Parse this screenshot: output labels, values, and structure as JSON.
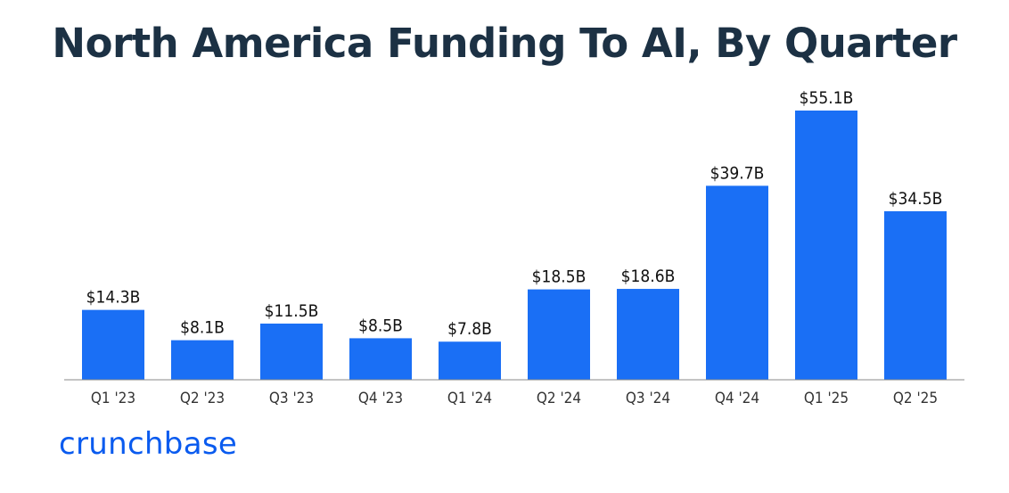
{
  "title": "North America Funding To AI, By Quarter",
  "brand": "crunchbase",
  "colors": {
    "bar": "#1a6ff5",
    "title": "#1c3144",
    "brand": "#0a5bef"
  },
  "chart_data": {
    "type": "bar",
    "title": "North America Funding To AI, By Quarter",
    "xlabel": "",
    "ylabel": "",
    "categories": [
      "Q1 '23",
      "Q2 '23",
      "Q3 '23",
      "Q4 '23",
      "Q1 '24",
      "Q2 '24",
      "Q3 '24",
      "Q4 '24",
      "Q1 '25",
      "Q2 '25"
    ],
    "values": [
      14.3,
      8.1,
      11.5,
      8.5,
      7.8,
      18.5,
      18.6,
      39.7,
      55.1,
      34.5
    ],
    "value_labels": [
      "$14.3B",
      "$8.1B",
      "$11.5B",
      "$8.5B",
      "$7.8B",
      "$18.5B",
      "$18.6B",
      "$39.7B",
      "$55.1B",
      "$34.5B"
    ],
    "unit": "USD billions",
    "ylim": [
      0,
      55.1
    ],
    "grid": false,
    "legend": "none"
  }
}
